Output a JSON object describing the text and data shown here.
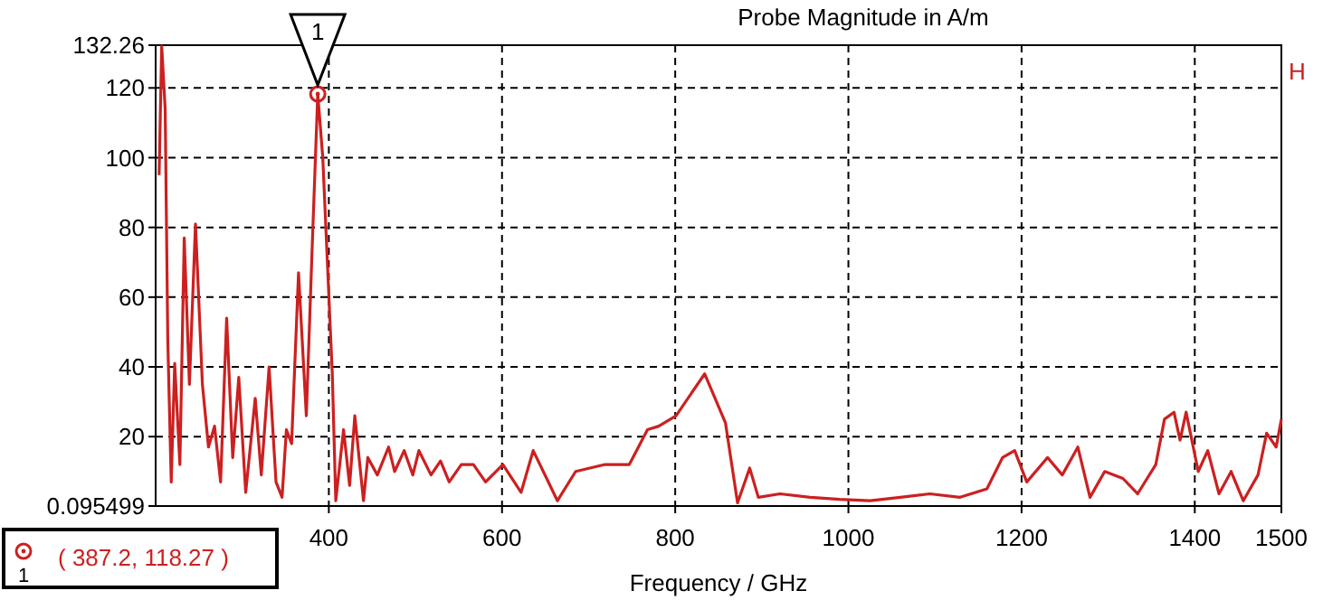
{
  "chart_data": {
    "type": "line",
    "title": "Probe Magnitude in A/m",
    "xlabel": "Frequency / GHz",
    "xlim": [
      200,
      1500
    ],
    "ylim": [
      0.095499,
      132.26
    ],
    "xticks": [
      400,
      600,
      800,
      1000,
      1200,
      1400,
      1500
    ],
    "yticks": [
      0.095499,
      20,
      40,
      60,
      80,
      100,
      120,
      132.26
    ],
    "grid": true,
    "line_style": "solid",
    "annotations": [
      {
        "text": "1",
        "x": 387.2,
        "y": 118.27
      },
      "( 387.2, 118.27 )",
      "H"
    ],
    "series": [
      {
        "color": "#cc2020",
        "x": [
          204,
          207,
          211,
          214,
          218,
          222,
          228,
          233,
          239,
          246,
          254,
          261,
          268,
          275,
          282,
          289,
          296,
          304,
          315,
          322,
          331,
          339,
          346,
          351,
          357,
          365,
          374,
          381,
          387.2,
          393,
          404,
          408,
          417,
          424,
          430,
          440,
          445,
          456,
          469,
          476,
          487,
          497,
          504,
          518,
          529,
          539,
          553,
          567,
          581,
          601,
          622,
          636,
          664,
          685,
          719,
          747,
          768,
          781,
          801,
          834,
          858,
          872,
          886,
          896,
          921,
          956,
          990,
          1025,
          1060,
          1094,
          1129,
          1160,
          1178,
          1192,
          1206,
          1230,
          1247,
          1265,
          1279,
          1296,
          1317,
          1334,
          1355,
          1365,
          1376,
          1383,
          1390,
          1404,
          1415,
          1428,
          1442,
          1456,
          1473,
          1483,
          1494,
          1500
        ],
        "values": [
          95,
          132,
          114,
          48,
          7,
          41,
          12,
          77,
          35,
          81,
          35,
          17,
          23,
          7,
          54,
          14,
          37,
          4,
          31,
          9,
          40,
          7,
          2.6,
          22,
          18,
          67,
          26,
          76,
          118.27,
          100,
          38,
          1.6,
          22,
          6,
          26,
          1.6,
          14,
          9,
          17,
          10,
          16,
          9,
          16,
          9,
          13,
          7,
          12,
          12,
          7,
          12,
          4,
          16,
          1.6,
          10,
          12,
          12,
          22,
          23,
          26,
          38,
          24,
          1,
          11,
          2.6,
          3.6,
          2.6,
          2,
          1.6,
          2.6,
          3.6,
          2.6,
          5,
          14,
          16,
          7,
          14,
          9,
          17,
          2.6,
          10,
          8,
          3.6,
          12,
          25,
          27,
          19,
          27,
          10,
          16,
          3.6,
          10,
          1.6,
          9,
          21,
          17,
          25
        ]
      }
    ]
  }
}
